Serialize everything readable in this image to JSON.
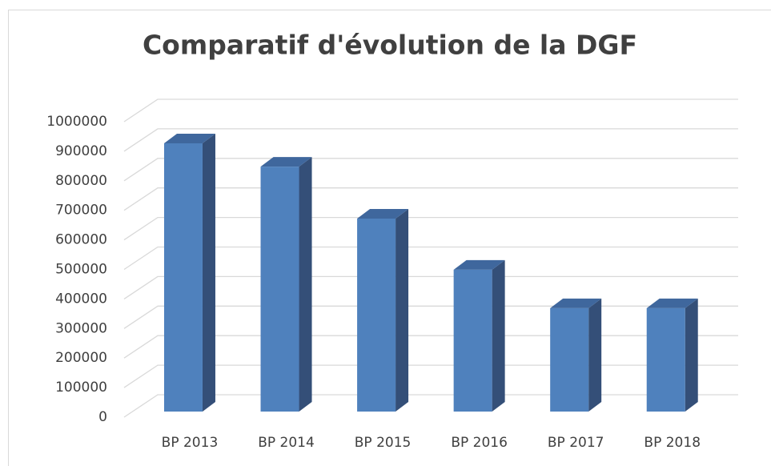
{
  "chart_data": {
    "type": "bar3d",
    "title": "Comparatif d'évolution de la DGF",
    "categories": [
      "BP 2013",
      "BP 2014",
      "BP 2015",
      "BP 2016",
      "BP 2017",
      "BP 2018"
    ],
    "values": [
      908000,
      829000,
      653000,
      480000,
      350000,
      350000
    ],
    "color": "#4f81bd",
    "ylim": [
      0,
      1000000
    ],
    "yticks": [
      0,
      100000,
      200000,
      300000,
      400000,
      500000,
      600000,
      700000,
      800000,
      900000,
      1000000
    ],
    "grid": true
  }
}
